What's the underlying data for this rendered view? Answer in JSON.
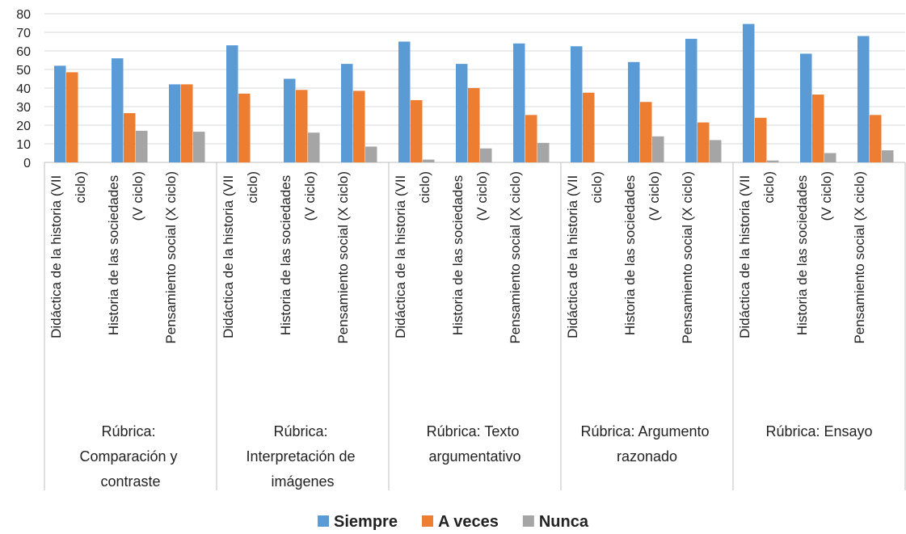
{
  "chart_data": {
    "type": "bar",
    "categories": [
      "Didáctica de la historia (VII ciclo)",
      "Historia de las sociedades (V ciclo)",
      "Pensamiento social (X ciclo)",
      "Didáctica de la historia (VII ciclo)",
      "Historia de las sociedades (V ciclo)",
      "Pensamiento social (X ciclo)",
      "Didáctica de la historia (VII ciclo)",
      "Historia de las sociedades (V ciclo)",
      "Pensamiento social (X ciclo)",
      "Didáctica de la historia (VII ciclo)",
      "Historia de las sociedades (V ciclo)",
      "Pensamiento social (X ciclo)",
      "Didáctica de la historia (VII ciclo)",
      "Historia de las sociedades (V ciclo)",
      "Pensamiento social (X ciclo)"
    ],
    "groups": [
      "Rúbrica: Comparación y contraste",
      "Rúbrica: Interpretación de imágenes",
      "Rúbrica: Texto argumentativo",
      "Rúbrica: Argumento razonado",
      "Rúbrica: Ensayo"
    ],
    "series": [
      {
        "name": "Siempre",
        "color": "#5b9bd5",
        "values": [
          52,
          56,
          42,
          63,
          45,
          53,
          65,
          53,
          64,
          62.5,
          54,
          66.5,
          74.5,
          58.5,
          68
        ]
      },
      {
        "name": "A veces",
        "color": "#ed7d31",
        "values": [
          48.5,
          26.5,
          42,
          37,
          39,
          38.5,
          33.5,
          40,
          25.5,
          37.5,
          32.5,
          21.5,
          24,
          36.5,
          25.5
        ]
      },
      {
        "name": "Nunca",
        "color": "#a5a5a5",
        "values": [
          0,
          17,
          16.5,
          0,
          16,
          8.5,
          1.5,
          7.5,
          10.5,
          0,
          14,
          12,
          1,
          5,
          6.5
        ]
      }
    ],
    "ylim": [
      0,
      80
    ],
    "yticks": [
      0,
      10,
      20,
      30,
      40,
      50,
      60,
      70,
      80
    ],
    "grid": true,
    "legend": "bottom"
  }
}
